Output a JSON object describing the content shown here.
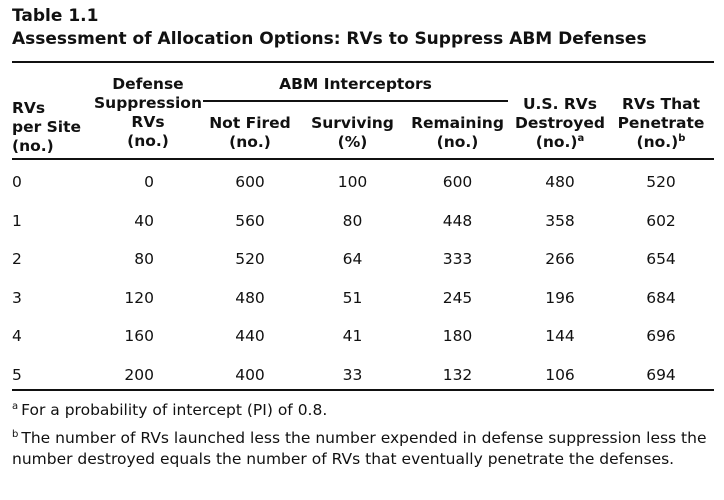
{
  "table": {
    "label": "Table 1.1",
    "title": "Assessment of Allocation Options: RVs to Suppress ABM Defenses",
    "headers": {
      "rvs_per_site": [
        "RVs",
        "per Site",
        "(no.)"
      ],
      "defense_suppression": [
        "Defense",
        "Suppression",
        "RVs",
        "(no.)"
      ],
      "abm_group": "ABM Interceptors",
      "not_fired": [
        "Not Fired",
        "(no.)"
      ],
      "surviving": [
        "Surviving",
        "(%)"
      ],
      "remaining": [
        "Remaining",
        "(no.)"
      ],
      "us_rvs_destroyed": [
        "U.S. RVs",
        "Destroyed",
        "(no.)"
      ],
      "us_rvs_destroyed_mark": "a",
      "rvs_penetrate": [
        "RVs That",
        "Penetrate",
        "(no.)"
      ],
      "rvs_penetrate_mark": "b"
    },
    "rows": [
      {
        "rvs_per_site": "0",
        "defense_suppression": "0",
        "not_fired": "600",
        "surviving": "100",
        "remaining": "600",
        "destroyed": "480",
        "penetrate": "520"
      },
      {
        "rvs_per_site": "1",
        "defense_suppression": "40",
        "not_fired": "560",
        "surviving": "80",
        "remaining": "448",
        "destroyed": "358",
        "penetrate": "602"
      },
      {
        "rvs_per_site": "2",
        "defense_suppression": "80",
        "not_fired": "520",
        "surviving": "64",
        "remaining": "333",
        "destroyed": "266",
        "penetrate": "654"
      },
      {
        "rvs_per_site": "3",
        "defense_suppression": "120",
        "not_fired": "480",
        "surviving": "51",
        "remaining": "245",
        "destroyed": "196",
        "penetrate": "684"
      },
      {
        "rvs_per_site": "4",
        "defense_suppression": "160",
        "not_fired": "440",
        "surviving": "41",
        "remaining": "180",
        "destroyed": "144",
        "penetrate": "696"
      },
      {
        "rvs_per_site": "5",
        "defense_suppression": "200",
        "not_fired": "400",
        "surviving": "33",
        "remaining": "132",
        "destroyed": "106",
        "penetrate": "694"
      }
    ]
  },
  "footnotes": {
    "a": {
      "mark": "a",
      "text": "For a probability of intercept (PI) of 0.8."
    },
    "b": {
      "mark": "b",
      "text": "The number of RVs launched less the number expended in defense suppression less the number destroyed equals the number of RVs that eventually penetrate the defenses."
    }
  }
}
